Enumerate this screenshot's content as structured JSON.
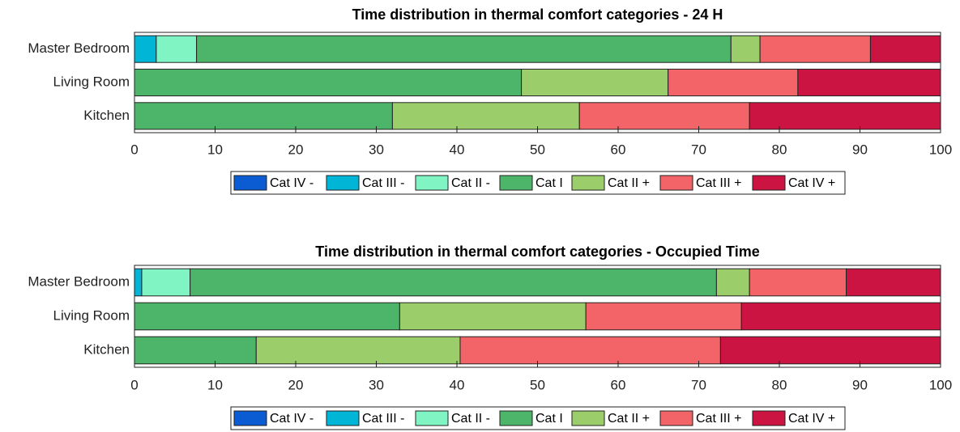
{
  "chart_data": [
    {
      "type": "stacked-barh",
      "title": "Time distribution in thermal comfort categories - 24 H",
      "categories": [
        "Master Bedroom",
        "Living Room",
        "Kitchen"
      ],
      "series": [
        {
          "name": "Cat IV -",
          "color": "#0b5bd3",
          "values": [
            0,
            0,
            0
          ]
        },
        {
          "name": "Cat III -",
          "color": "#00b5d6",
          "values": [
            2.7,
            0,
            0
          ]
        },
        {
          "name": "Cat II -",
          "color": "#80f4c2",
          "values": [
            5.0,
            0,
            0
          ]
        },
        {
          "name": "Cat I",
          "color": "#4db56a",
          "values": [
            66.3,
            48.0,
            32.0
          ]
        },
        {
          "name": "Cat II +",
          "color": "#9bcd6a",
          "values": [
            3.6,
            18.2,
            23.2
          ]
        },
        {
          "name": "Cat III +",
          "color": "#f26468",
          "values": [
            13.7,
            16.1,
            21.1
          ]
        },
        {
          "name": "Cat IV +",
          "color": "#cc1442",
          "values": [
            8.7,
            17.7,
            23.7
          ]
        }
      ],
      "xlim": [
        0,
        100
      ],
      "xticks": [
        0,
        10,
        20,
        30,
        40,
        50,
        60,
        70,
        80,
        90,
        100
      ],
      "legend": "bottom"
    },
    {
      "type": "stacked-barh",
      "title": "Time distribution in thermal comfort categories - Occupied Time",
      "categories": [
        "Master Bedroom",
        "Living Room",
        "Kitchen"
      ],
      "series": [
        {
          "name": "Cat IV -",
          "color": "#0b5bd3",
          "values": [
            0,
            0,
            0
          ]
        },
        {
          "name": "Cat III -",
          "color": "#00b5d6",
          "values": [
            0.9,
            0,
            0
          ]
        },
        {
          "name": "Cat II -",
          "color": "#80f4c2",
          "values": [
            6.0,
            0,
            0
          ]
        },
        {
          "name": "Cat I",
          "color": "#4db56a",
          "values": [
            65.3,
            32.9,
            15.1
          ]
        },
        {
          "name": "Cat II +",
          "color": "#9bcd6a",
          "values": [
            4.1,
            23.1,
            25.3
          ]
        },
        {
          "name": "Cat III +",
          "color": "#f26468",
          "values": [
            12.0,
            19.3,
            32.3
          ]
        },
        {
          "name": "Cat IV +",
          "color": "#cc1442",
          "values": [
            11.7,
            24.7,
            27.3
          ]
        }
      ],
      "xlim": [
        0,
        100
      ],
      "xticks": [
        0,
        10,
        20,
        30,
        40,
        50,
        60,
        70,
        80,
        90,
        100
      ],
      "legend": "bottom"
    }
  ]
}
